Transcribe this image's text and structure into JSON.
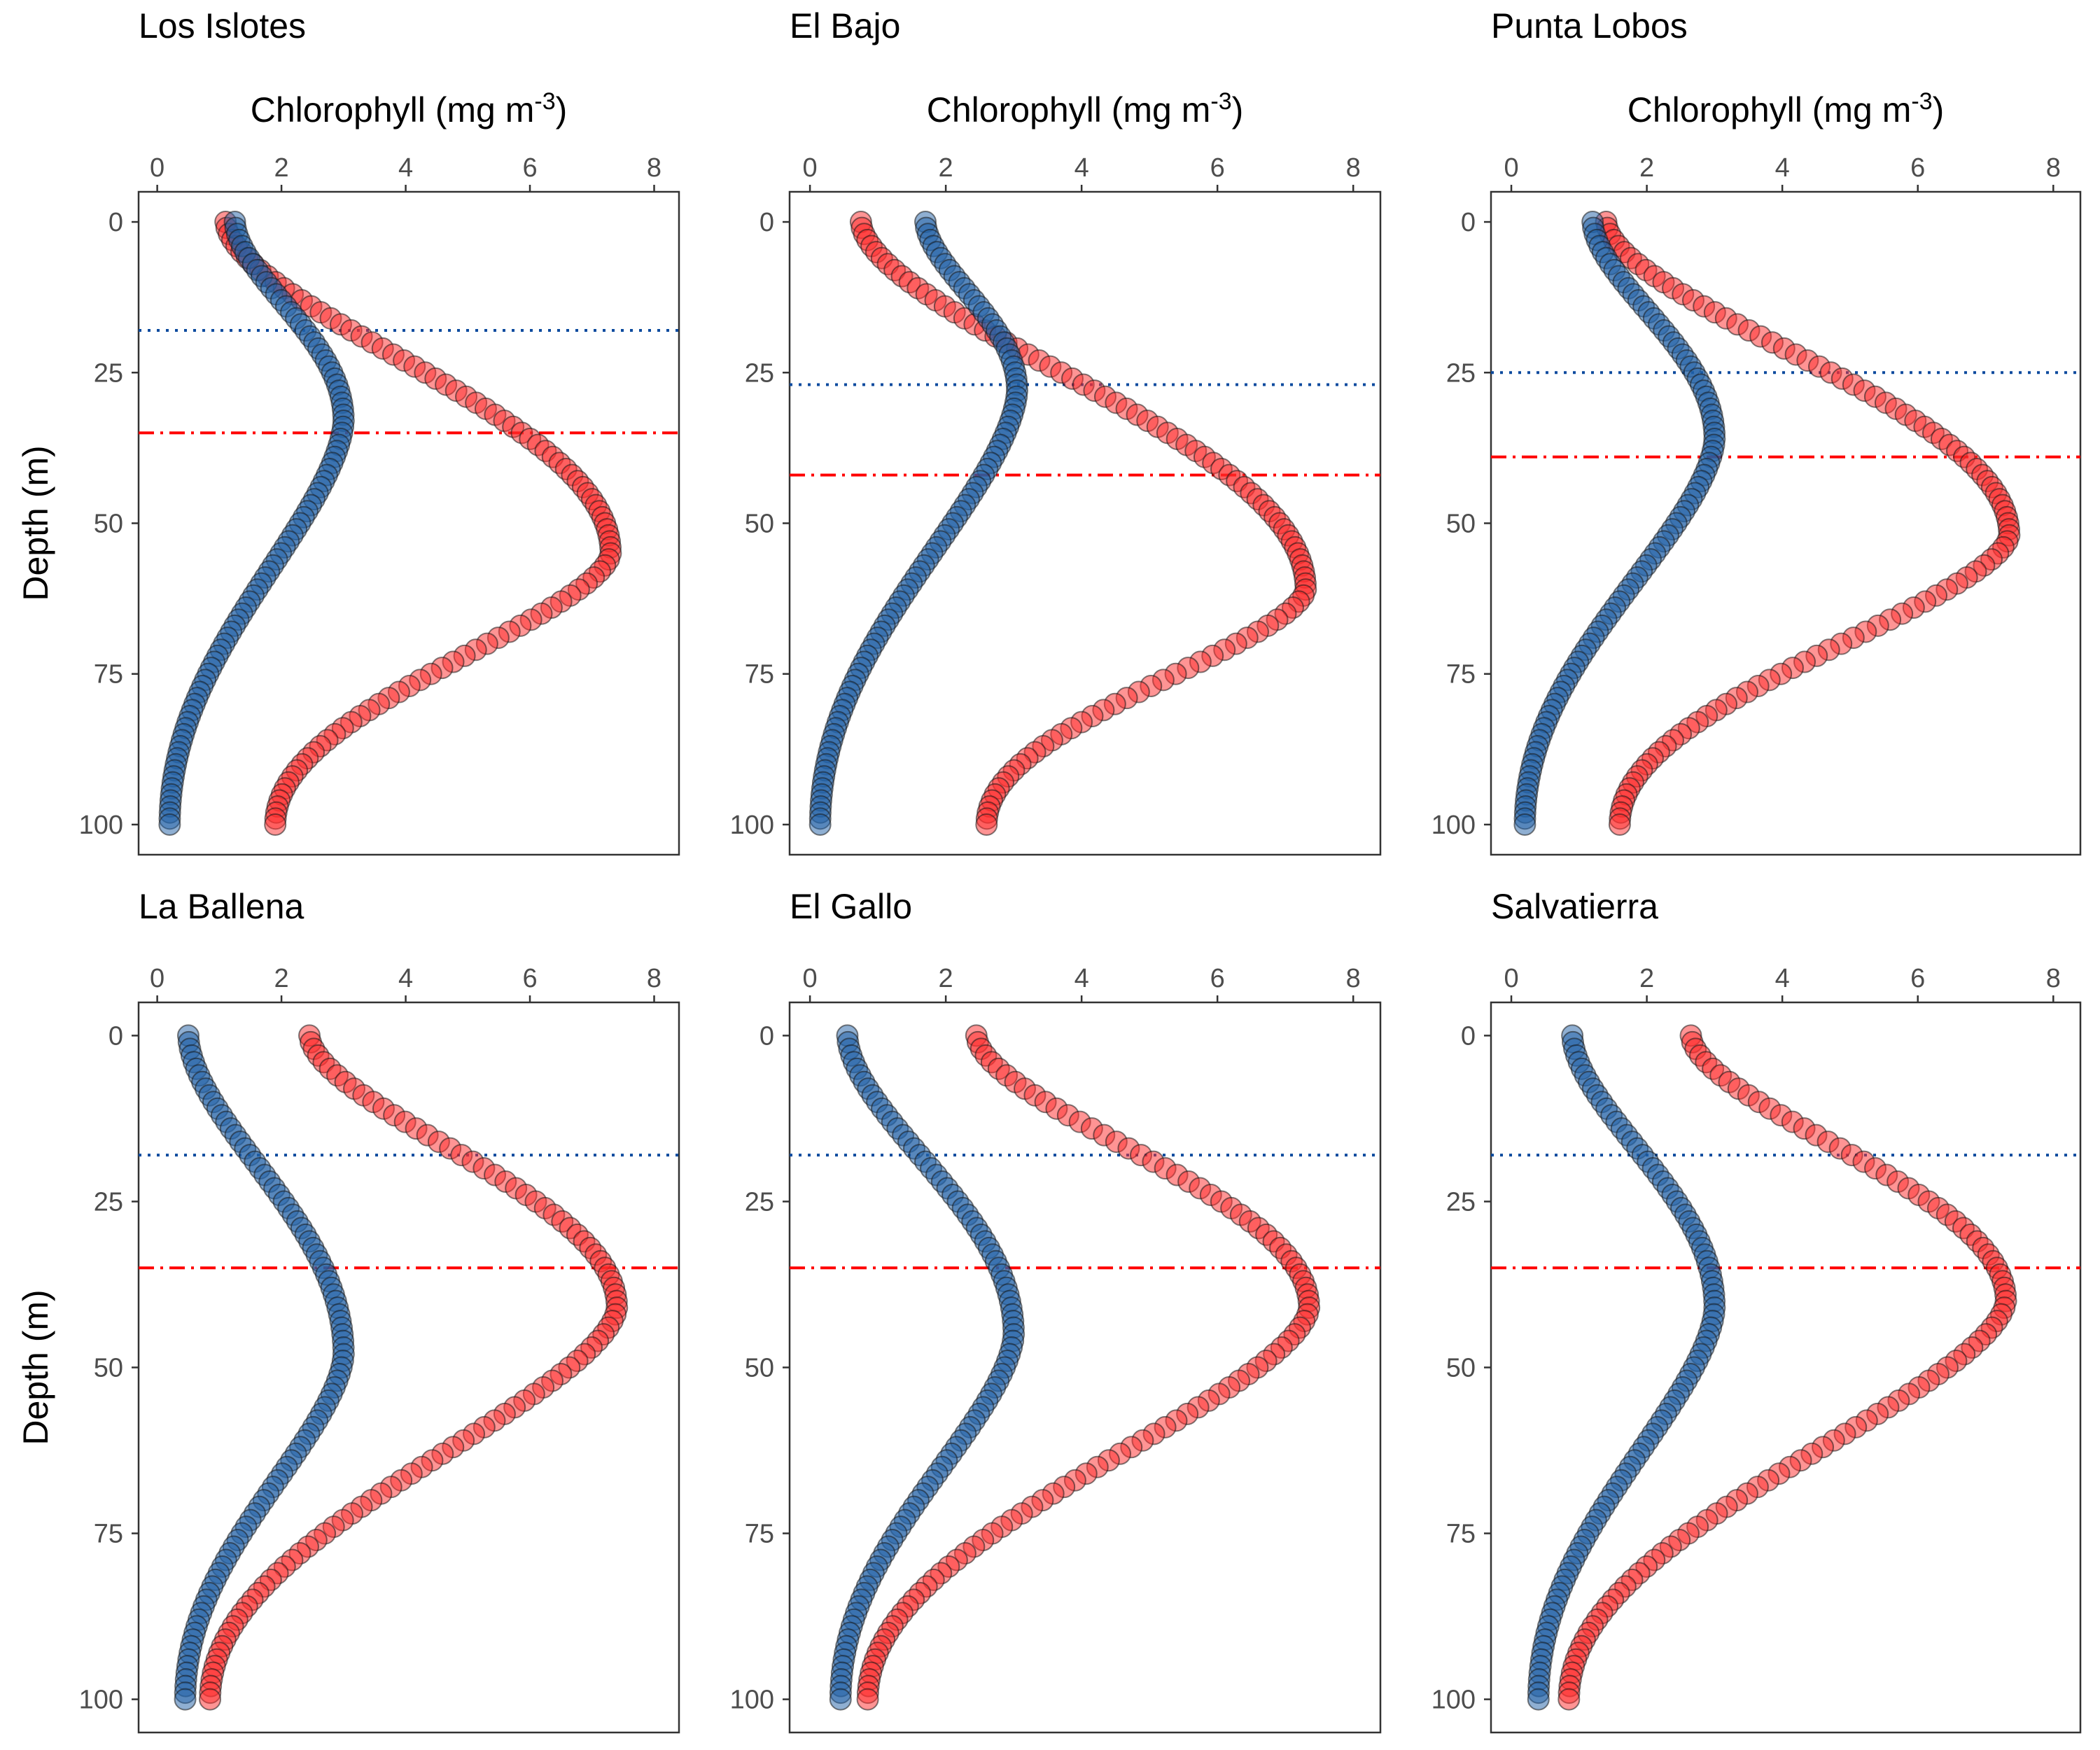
{
  "colors": {
    "blue": "#1f5fa6",
    "red": "#ff2a2a",
    "blue_line": "#0b4a9e",
    "red_line": "#ff0000"
  },
  "chart_data": [
    {
      "type": "scatter",
      "title": "Los Islotes",
      "xlabel_main": "Chlorophyll (mg m",
      "xlabel_sup": "-3",
      "xlabel_end": ")",
      "ylabel": "Depth (m)",
      "xlim": [
        -0.3,
        8.4
      ],
      "ylim": [
        -5,
        105
      ],
      "xticks": [
        0,
        2,
        4,
        6,
        8
      ],
      "yticks": [
        0,
        25,
        50,
        75,
        100
      ],
      "x_axis_position": "top",
      "y_reversed": true,
      "grid": false,
      "series": [
        {
          "color": "blue",
          "peak_depth": 33,
          "surface": 1.25,
          "peak": 3.0,
          "bottom": 0.2,
          "width_above": 24,
          "width_below": 38
        },
        {
          "color": "red",
          "peak_depth": 55,
          "surface": 1.1,
          "peak": 7.3,
          "bottom": 1.9,
          "width_above": 30,
          "width_below": 28
        }
      ],
      "hlines": [
        {
          "y": 18,
          "color": "blue_line",
          "style": "dotted"
        },
        {
          "y": 35,
          "color": "red_line",
          "style": "dashdot"
        }
      ]
    },
    {
      "type": "scatter",
      "title": "El Bajo",
      "xlabel_main": "Chlorophyll (mg m",
      "xlabel_sup": "-3",
      "xlabel_end": ")",
      "ylabel": "",
      "xlim": [
        -0.3,
        8.4
      ],
      "ylim": [
        -5,
        105
      ],
      "xticks": [
        0,
        2,
        4,
        6,
        8
      ],
      "yticks": [
        0,
        25,
        50,
        75,
        100
      ],
      "x_axis_position": "top",
      "y_reversed": true,
      "grid": false,
      "series": [
        {
          "color": "blue",
          "peak_depth": 28,
          "surface": 1.7,
          "peak": 3.05,
          "bottom": 0.15,
          "width_above": 22,
          "width_below": 30
        },
        {
          "color": "red",
          "peak_depth": 61,
          "surface": 0.75,
          "peak": 7.3,
          "bottom": 2.6,
          "width_above": 35,
          "width_below": 25
        }
      ],
      "hlines": [
        {
          "y": 27,
          "color": "blue_line",
          "style": "dotted"
        },
        {
          "y": 42,
          "color": "red_line",
          "style": "dashdot"
        }
      ]
    },
    {
      "type": "scatter",
      "title": "Punta Lobos",
      "xlabel_main": "Chlorophyll (mg m",
      "xlabel_sup": "-3",
      "xlabel_end": ")",
      "ylabel": "",
      "xlim": [
        -0.3,
        8.4
      ],
      "ylim": [
        -5,
        105
      ],
      "xticks": [
        0,
        2,
        4,
        6,
        8
      ],
      "yticks": [
        0,
        25,
        50,
        75,
        100
      ],
      "x_axis_position": "top",
      "y_reversed": true,
      "grid": false,
      "series": [
        {
          "color": "blue",
          "peak_depth": 36,
          "surface": 1.2,
          "peak": 3.0,
          "bottom": 0.2,
          "width_above": 22,
          "width_below": 30
        },
        {
          "color": "red",
          "peak_depth": 52,
          "surface": 1.4,
          "peak": 7.35,
          "bottom": 1.6,
          "width_above": 24,
          "width_below": 30
        }
      ],
      "hlines": [
        {
          "y": 25,
          "color": "blue_line",
          "style": "dotted"
        },
        {
          "y": 39,
          "color": "red_line",
          "style": "dashdot"
        }
      ]
    },
    {
      "type": "scatter",
      "title": "La Ballena",
      "xlabel_main": "",
      "xlabel_sup": "",
      "xlabel_end": "",
      "ylabel": "Depth (m)",
      "xlim": [
        -0.3,
        8.4
      ],
      "ylim": [
        -5,
        105
      ],
      "xticks": [
        0,
        2,
        4,
        6,
        8
      ],
      "yticks": [
        0,
        25,
        50,
        75,
        100
      ],
      "x_axis_position": "top",
      "y_reversed": true,
      "grid": false,
      "series": [
        {
          "color": "blue",
          "peak_depth": 48,
          "surface": 0.5,
          "peak": 3.0,
          "bottom": 0.45,
          "width_above": 28,
          "width_below": 32
        },
        {
          "color": "red",
          "peak_depth": 41,
          "surface": 2.45,
          "peak": 7.4,
          "bottom": 0.85,
          "width_above": 26,
          "width_below": 30
        }
      ],
      "hlines": [
        {
          "y": 18,
          "color": "blue_line",
          "style": "dotted"
        },
        {
          "y": 35,
          "color": "red_line",
          "style": "dashdot"
        }
      ]
    },
    {
      "type": "scatter",
      "title": "El Gallo",
      "xlabel_main": "",
      "xlabel_sup": "",
      "xlabel_end": "",
      "ylabel": "",
      "xlim": [
        -0.3,
        8.4
      ],
      "ylim": [
        -5,
        105
      ],
      "xticks": [
        0,
        2,
        4,
        6,
        8
      ],
      "yticks": [
        0,
        25,
        50,
        75,
        100
      ],
      "x_axis_position": "top",
      "y_reversed": true,
      "grid": false,
      "series": [
        {
          "color": "blue",
          "peak_depth": 45,
          "surface": 0.55,
          "peak": 3.0,
          "bottom": 0.45,
          "width_above": 27,
          "width_below": 32
        },
        {
          "color": "red",
          "peak_depth": 41,
          "surface": 2.45,
          "peak": 7.35,
          "bottom": 0.85,
          "width_above": 26,
          "width_below": 30
        }
      ],
      "hlines": [
        {
          "y": 18,
          "color": "blue_line",
          "style": "dotted"
        },
        {
          "y": 35,
          "color": "red_line",
          "style": "dashdot"
        }
      ]
    },
    {
      "type": "scatter",
      "title": "Salvatierra",
      "xlabel_main": "",
      "xlabel_sup": "",
      "xlabel_end": "",
      "ylabel": "",
      "xlim": [
        -0.3,
        8.4
      ],
      "ylim": [
        -5,
        105
      ],
      "xticks": [
        0,
        2,
        4,
        6,
        8
      ],
      "yticks": [
        0,
        25,
        50,
        75,
        100
      ],
      "x_axis_position": "top",
      "y_reversed": true,
      "grid": false,
      "series": [
        {
          "color": "blue",
          "peak_depth": 41,
          "surface": 0.9,
          "peak": 3.0,
          "bottom": 0.4,
          "width_above": 25,
          "width_below": 34
        },
        {
          "color": "red",
          "peak_depth": 40,
          "surface": 2.65,
          "peak": 7.3,
          "bottom": 0.85,
          "width_above": 28,
          "width_below": 30
        }
      ],
      "hlines": [
        {
          "y": 18,
          "color": "blue_line",
          "style": "dotted"
        },
        {
          "y": 35,
          "color": "red_line",
          "style": "dashdot"
        }
      ]
    }
  ]
}
